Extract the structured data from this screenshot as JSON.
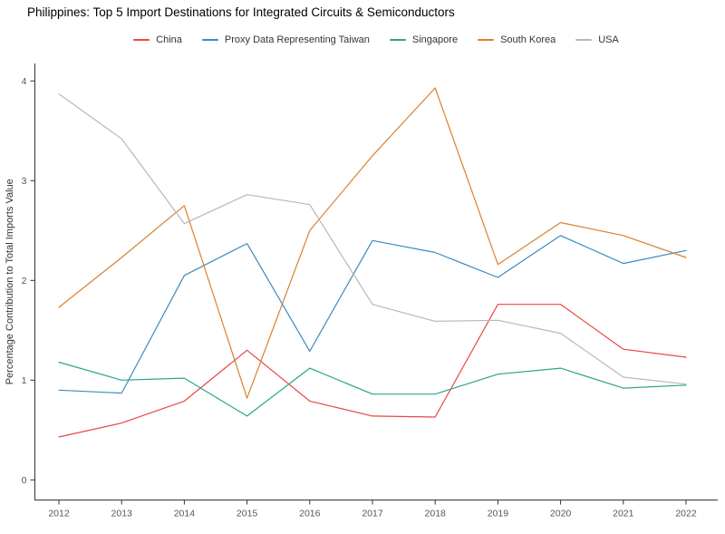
{
  "title": "Philippines: Top 5 Import Destinations for Integrated Circuits & Semiconductors",
  "chart_data": {
    "type": "line",
    "title": "Philippines: Top 5 Import Destinations for Integrated Circuits & Semiconductors",
    "x": [
      2012,
      2013,
      2014,
      2015,
      2016,
      2017,
      2018,
      2019,
      2020,
      2021,
      2022
    ],
    "series": [
      {
        "name": "China",
        "color": "#e94743",
        "values": [
          0.43,
          0.57,
          0.79,
          1.3,
          0.79,
          0.64,
          0.63,
          1.76,
          1.76,
          1.31,
          1.23
        ]
      },
      {
        "name": "Proxy Data Representing Taiwan",
        "color": "#3b8bc2",
        "values": [
          0.9,
          0.87,
          2.05,
          2.37,
          1.29,
          2.4,
          2.28,
          2.03,
          2.45,
          2.17,
          2.3
        ]
      },
      {
        "name": "Singapore",
        "color": "#2aa58a",
        "values": [
          1.18,
          1.0,
          1.02,
          0.64,
          1.12,
          0.86,
          0.86,
          1.06,
          1.12,
          0.92,
          0.95
        ]
      },
      {
        "name": "South Korea",
        "color": "#d9822f",
        "values": [
          1.73,
          2.23,
          2.75,
          0.82,
          2.5,
          3.25,
          3.93,
          2.16,
          2.58,
          2.45,
          2.23
        ]
      },
      {
        "name": "USA",
        "color": "#b8b8b8",
        "values": [
          3.87,
          3.42,
          2.57,
          2.86,
          2.76,
          1.76,
          1.59,
          1.6,
          1.47,
          1.03,
          0.96
        ]
      }
    ],
    "xlabel": "",
    "ylabel": "Percentage Contribution to Total Imports Value",
    "ylim": [
      0,
      4
    ],
    "y_ticks": [
      0,
      1,
      2,
      3,
      4
    ],
    "x_ticks": [
      2012,
      2013,
      2014,
      2015,
      2016,
      2017,
      2018,
      2019,
      2020,
      2021,
      2022
    ],
    "grid": false,
    "legend_position": "top-center"
  },
  "style": {
    "axis_color": "#333333",
    "tick_label_color": "#555555",
    "ylabel_color": "#333333",
    "background": "#ffffff"
  }
}
